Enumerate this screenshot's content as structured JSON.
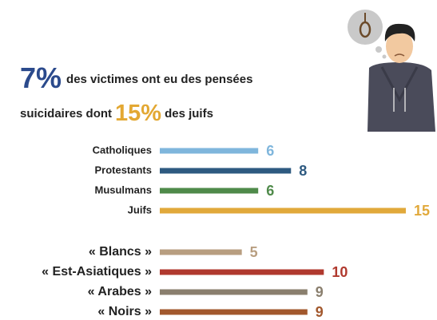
{
  "headline": {
    "stat1": "7%",
    "text1": "des victimes ont eu des pensées",
    "text2": "suicidaires dont",
    "stat2": "15%",
    "text3": "des juifs"
  },
  "chart_data": [
    {
      "type": "bar",
      "orientation": "horizontal",
      "categories": [
        "Catholiques",
        "Protestants",
        "Musulmans",
        "Juifs"
      ],
      "values": [
        6,
        8,
        6,
        15
      ],
      "colors": [
        "#7fb6dc",
        "#2e5a80",
        "#4f8a4a",
        "#e1a93b"
      ]
    },
    {
      "type": "bar",
      "orientation": "horizontal",
      "categories": [
        "« Blancs »",
        "« Est-Asiatiques »",
        "« Arabes »",
        "« Noirs »"
      ],
      "values": [
        5,
        10,
        9,
        9
      ],
      "colors": [
        "#b89e80",
        "#b0392e",
        "#8a7f6e",
        "#a2582d"
      ]
    }
  ]
}
